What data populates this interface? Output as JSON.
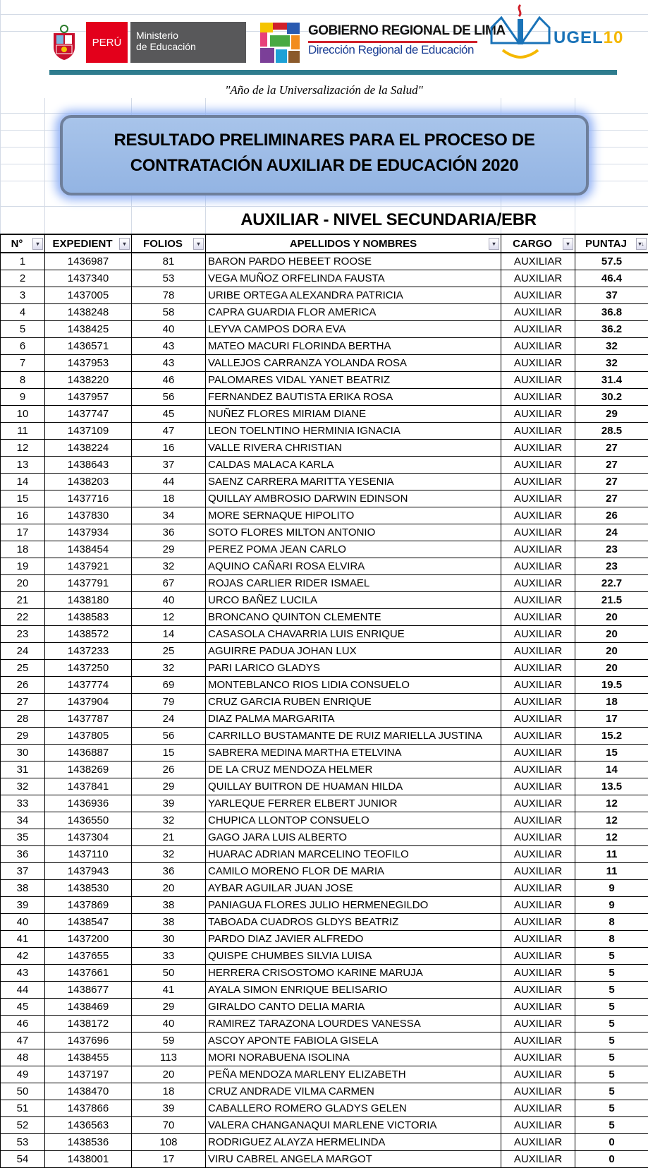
{
  "header": {
    "logo_peru": "PERÚ",
    "logo_ministerio": [
      "Ministerio",
      "de Educación"
    ],
    "logo_gobierno_title": "GOBIERNO REGIONAL DE LIMA",
    "logo_gobierno_sub": "Dirección Regional de Educación",
    "logo_ugel": "UGEL",
    "logo_ugel_num": "10",
    "quote": "\"Año de la Universalización de la Salud\"",
    "title_line1": "RESULTADO PRELIMINARES PARA EL PROCESO DE",
    "title_line2": "CONTRATACIÓN AUXILIAR DE EDUCACIÓN 2020",
    "subtitle": "AUXILIAR - NIVEL SECUNDARIA/EBR"
  },
  "colors": {
    "peru_red": "#e3001b",
    "minedu_grey": "#58585a",
    "teal": "#2e7c8e",
    "title_box": "#a8c4ea"
  },
  "table": {
    "columns": [
      "N°",
      "EXPEDIENT",
      "FOLIOS",
      "APELLIDOS Y NOMBRES",
      "CARGO",
      "PUNTAJ"
    ],
    "sort_icon": "sort-descending-icon",
    "rows": [
      [
        1,
        "1436987",
        "81",
        "BARON PARDO HEBEET ROOSE",
        "AUXILIAR",
        "57.5"
      ],
      [
        2,
        "1437340",
        "53",
        "VEGA MUÑOZ ORFELINDA FAUSTA",
        "AUXILIAR",
        "46.4"
      ],
      [
        3,
        "1437005",
        "78",
        "URIBE ORTEGA ALEXANDRA PATRICIA",
        "AUXILIAR",
        "37"
      ],
      [
        4,
        "1438248",
        "58",
        "CAPRA GUARDIA FLOR AMERICA",
        "AUXILIAR",
        "36.8"
      ],
      [
        5,
        "1438425",
        "40",
        "LEYVA CAMPOS DORA EVA",
        "AUXILIAR",
        "36.2"
      ],
      [
        6,
        "1436571",
        "43",
        "MATEO MACURI FLORINDA BERTHA",
        "AUXILIAR",
        "32"
      ],
      [
        7,
        "1437953",
        "43",
        "VALLEJOS CARRANZA YOLANDA ROSA",
        "AUXILIAR",
        "32"
      ],
      [
        8,
        "1438220",
        "46",
        "PALOMARES VIDAL YANET BEATRIZ",
        "AUXILIAR",
        "31.4"
      ],
      [
        9,
        "1437957",
        "56",
        "FERNANDEZ BAUTISTA ERIKA ROSA",
        "AUXILIAR",
        "30.2"
      ],
      [
        10,
        "1437747",
        "45",
        "NUÑEZ FLORES MIRIAM DIANE",
        "AUXILIAR",
        "29"
      ],
      [
        11,
        "1437109",
        "47",
        "LEON TOELNTINO HERMINIA IGNACIA",
        "AUXILIAR",
        "28.5"
      ],
      [
        12,
        "1438224",
        "16",
        "VALLE RIVERA CHRISTIAN",
        "AUXILIAR",
        "27"
      ],
      [
        13,
        "1438643",
        "37",
        "CALDAS MALACA KARLA",
        "AUXILIAR",
        "27"
      ],
      [
        14,
        "1438203",
        "44",
        "SAENZ CARRERA MARITTA YESENIA",
        "AUXILIAR",
        "27"
      ],
      [
        15,
        "1437716",
        "18",
        "QUILLAY AMBROSIO DARWIN EDINSON",
        "AUXILIAR",
        "27"
      ],
      [
        16,
        "1437830",
        "34",
        "MORE SERNAQUE HIPOLITO",
        "AUXILIAR",
        "26"
      ],
      [
        17,
        "1437934",
        "36",
        "SOTO FLORES MILTON ANTONIO",
        "AUXILIAR",
        "24"
      ],
      [
        18,
        "1438454",
        "29",
        "PEREZ POMA JEAN CARLO",
        "AUXILIAR",
        "23"
      ],
      [
        19,
        "1437921",
        "32",
        "AQUINO CAÑARI ROSA ELVIRA",
        "AUXILIAR",
        "23"
      ],
      [
        20,
        "1437791",
        "67",
        "ROJAS CARLIER RIDER ISMAEL",
        "AUXILIAR",
        "22.7"
      ],
      [
        21,
        "1438180",
        "40",
        "URCO BAÑEZ LUCILA",
        "AUXILIAR",
        "21.5"
      ],
      [
        22,
        "1438583",
        "12",
        "BRONCANO QUINTON CLEMENTE",
        "AUXILIAR",
        "20"
      ],
      [
        23,
        "1438572",
        "14",
        "CASASOLA CHAVARRIA LUIS ENRIQUE",
        "AUXILIAR",
        "20"
      ],
      [
        24,
        "1437233",
        "25",
        "AGUIRRE PADUA JOHAN LUX",
        "AUXILIAR",
        "20"
      ],
      [
        25,
        "1437250",
        "32",
        "PARI LARICO GLADYS",
        "AUXILIAR",
        "20"
      ],
      [
        26,
        "1437774",
        "69",
        "MONTEBLANCO RIOS LIDIA CONSUELO",
        "AUXILIAR",
        "19.5"
      ],
      [
        27,
        "1437904",
        "79",
        "CRUZ GARCIA RUBEN ENRIQUE",
        "AUXILIAR",
        "18"
      ],
      [
        28,
        "1437787",
        "24",
        "DIAZ PALMA MARGARITA",
        "AUXILIAR",
        "17"
      ],
      [
        29,
        "1437805",
        "56",
        "CARRILLO BUSTAMANTE DE RUIZ MARIELLA JUSTINA",
        "AUXILIAR",
        "15.2"
      ],
      [
        30,
        "1436887",
        "15",
        "SABRERA MEDINA MARTHA ETELVINA",
        "AUXILIAR",
        "15"
      ],
      [
        31,
        "1438269",
        "26",
        "DE LA CRUZ MENDOZA HELMER",
        "AUXILIAR",
        "14"
      ],
      [
        32,
        "1437841",
        "29",
        "QUILLAY BUITRON DE HUAMAN HILDA",
        "AUXILIAR",
        "13.5"
      ],
      [
        33,
        "1436936",
        "39",
        "YARLEQUE FERRER ELBERT JUNIOR",
        "AUXILIAR",
        "12"
      ],
      [
        34,
        "1436550",
        "32",
        "CHUPICA LLONTOP CONSUELO",
        "AUXILIAR",
        "12"
      ],
      [
        35,
        "1437304",
        "21",
        "GAGO JARA LUIS ALBERTO",
        "AUXILIAR",
        "12"
      ],
      [
        36,
        "1437110",
        "32",
        "HUARAC ADRIAN MARCELINO TEOFILO",
        "AUXILIAR",
        "11"
      ],
      [
        37,
        "1437943",
        "36",
        "CAMILO MORENO FLOR DE MARIA",
        "AUXILIAR",
        "11"
      ],
      [
        38,
        "1438530",
        "20",
        "AYBAR AGUILAR JUAN JOSE",
        "AUXILIAR",
        "9"
      ],
      [
        39,
        "1437869",
        "38",
        "PANIAGUA FLORES JULIO HERMENEGILDO",
        "AUXILIAR",
        "9"
      ],
      [
        40,
        "1438547",
        "38",
        "TABOADA CUADROS GLDYS BEATRIZ",
        "AUXILIAR",
        "8"
      ],
      [
        41,
        "1437200",
        "30",
        "PARDO DIAZ JAVIER ALFREDO",
        "AUXILIAR",
        "8"
      ],
      [
        42,
        "1437655",
        "33",
        "QUISPE CHUMBES SILVIA LUISA",
        "AUXILIAR",
        "5"
      ],
      [
        43,
        "1437661",
        "50",
        "HERRERA CRISOSTOMO KARINE MARUJA",
        "AUXILIAR",
        "5"
      ],
      [
        44,
        "1438677",
        "41",
        "AYALA SIMON ENRIQUE BELISARIO",
        "AUXILIAR",
        "5"
      ],
      [
        45,
        "1438469",
        "29",
        "GIRALDO CANTO DELIA MARIA",
        "AUXILIAR",
        "5"
      ],
      [
        46,
        "1438172",
        "40",
        "RAMIREZ TARAZONA LOURDES VANESSA",
        "AUXILIAR",
        "5"
      ],
      [
        47,
        "1437696",
        "59",
        "ASCOY APONTE FABIOLA GISELA",
        "AUXILIAR",
        "5"
      ],
      [
        48,
        "1438455",
        "113",
        "MORI NORABUENA ISOLINA",
        "AUXILIAR",
        "5"
      ],
      [
        49,
        "1437197",
        "20",
        "PEÑA MENDOZA MARLENY ELIZABETH",
        "AUXILIAR",
        "5"
      ],
      [
        50,
        "1438470",
        "18",
        "CRUZ ANDRADE VILMA CARMEN",
        "AUXILIAR",
        "5"
      ],
      [
        51,
        "1437866",
        "39",
        "CABALLERO ROMERO GLADYS GELEN",
        "AUXILIAR",
        "5"
      ],
      [
        52,
        "1436563",
        "70",
        "VALERA CHANGANAQUI MARLENE VICTORIA",
        "AUXILIAR",
        "5"
      ],
      [
        53,
        "1438536",
        "108",
        "RODRIGUEZ ALAYZA HERMELINDA",
        "AUXILIAR",
        "0"
      ],
      [
        54,
        "1438001",
        "17",
        "VIRU CABREL ANGELA MARGOT",
        "AUXILIAR",
        "0"
      ]
    ]
  }
}
